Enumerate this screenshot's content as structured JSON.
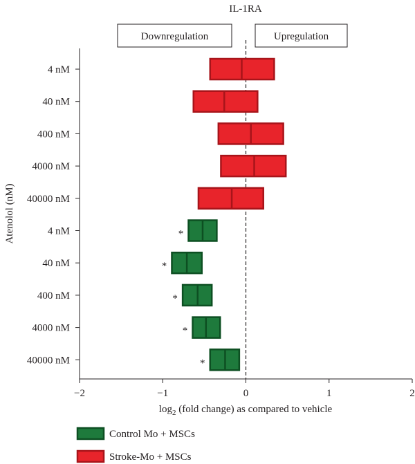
{
  "chart_data": {
    "type": "floating-bar",
    "title": "IL-1RA",
    "xlabel": "log",
    "xlabel_sub": "2",
    "xlabel_rest": " (fold change) as compared to vehicle",
    "ylabel": "Atenolol (nM)",
    "xlim": [
      -2,
      2
    ],
    "xticks": [
      -2,
      -1,
      0,
      1,
      2
    ],
    "xtick_labels": [
      "−2",
      "−1",
      "0",
      "1",
      "2"
    ],
    "reference_line_x": 0,
    "regions": {
      "left": "Downregulation",
      "right": "Upregulation"
    },
    "categories": [
      "4 nM",
      "40 nM",
      "400 nM",
      "4000 nM",
      "40000 nM",
      "4 nM",
      "40 nM",
      "400 nM",
      "4000 nM",
      "40000 nM"
    ],
    "series": [
      {
        "name": "Control Mo + MSCs",
        "color": "#1e7a3c",
        "border": "#0d4f22",
        "rows": [
          5,
          6,
          7,
          8,
          9
        ],
        "low": [
          -0.69,
          -0.89,
          -0.76,
          -0.64,
          -0.43
        ],
        "median": [
          -0.52,
          -0.71,
          -0.58,
          -0.48,
          -0.25
        ],
        "high": [
          -0.35,
          -0.53,
          -0.41,
          -0.31,
          -0.08
        ],
        "significance": [
          "*",
          "*",
          "*",
          "*",
          "*"
        ]
      },
      {
        "name": "Stroke-Mo + MSCs",
        "color": "#e8242b",
        "border": "#a8141a",
        "rows": [
          0,
          1,
          2,
          3,
          4
        ],
        "low": [
          -0.43,
          -0.63,
          -0.33,
          -0.3,
          -0.57
        ],
        "median": [
          -0.05,
          -0.26,
          0.06,
          0.1,
          -0.17
        ],
        "high": [
          0.34,
          0.14,
          0.45,
          0.48,
          0.21
        ],
        "significance": [
          "",
          "",
          "",
          "",
          ""
        ]
      }
    ],
    "legend_position": "bottom-left",
    "grid": false
  }
}
